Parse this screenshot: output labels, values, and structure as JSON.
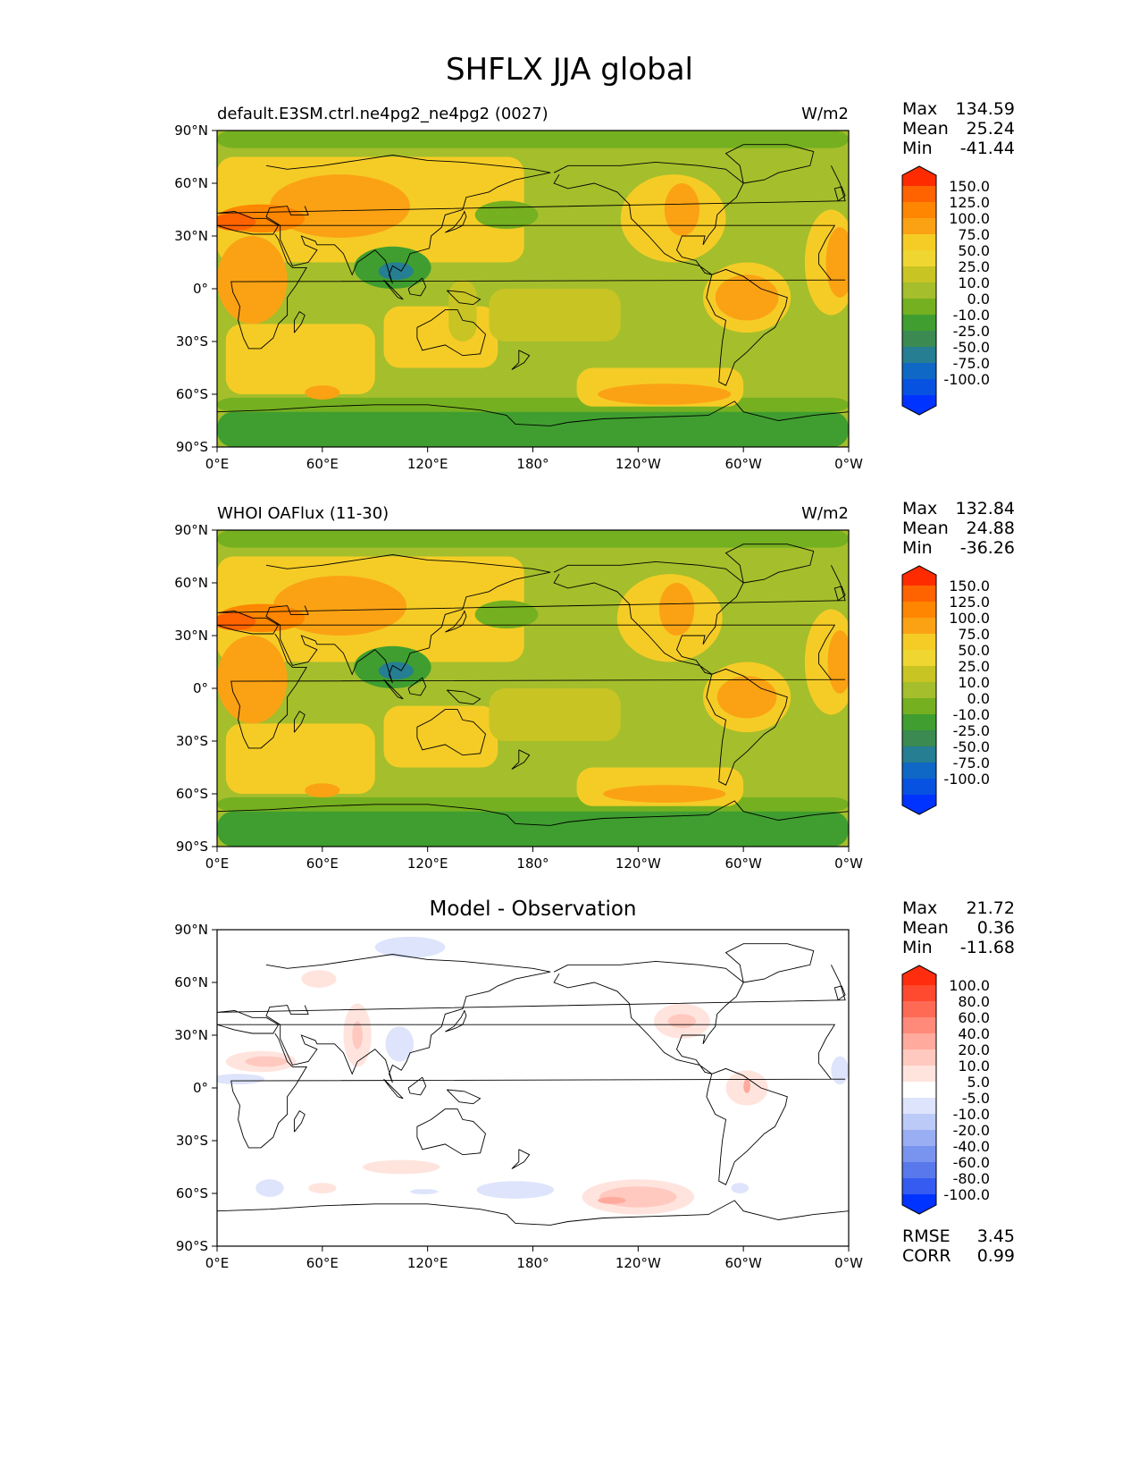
{
  "title": "SHFLX JJA global",
  "panels": [
    {
      "id": "model",
      "left_title": "default.E3SM.ctrl.ne4pg2_ne4pg2 (0027)",
      "units": "W/m2",
      "center_title": "",
      "stats": [
        {
          "label": "Max",
          "value": "134.59"
        },
        {
          "label": "Mean",
          "value": "25.24"
        },
        {
          "label": "Min",
          "value": "-41.44"
        }
      ],
      "colorbar": {
        "labels": [
          "150.0",
          "125.0",
          "100.0",
          "75.0",
          "50.0",
          "25.0",
          "10.0",
          "0.0",
          "-10.0",
          "-25.0",
          "-50.0",
          "-75.0",
          "-100.0"
        ],
        "colors": [
          "#ff2b00",
          "#ff6300",
          "#ff8600",
          "#fba214",
          "#f5cc26",
          "#f0d631",
          "#c8c424",
          "#a5be2c",
          "#75b020",
          "#3f9e2f",
          "#3a8a52",
          "#257e91",
          "#0f68c5",
          "#0752e0",
          "#0033ff"
        ]
      },
      "extra_stats": []
    },
    {
      "id": "obs",
      "left_title": "WHOI OAFlux (11-30)",
      "units": "W/m2",
      "center_title": "",
      "stats": [
        {
          "label": "Max",
          "value": "132.84"
        },
        {
          "label": "Mean",
          "value": "24.88"
        },
        {
          "label": "Min",
          "value": "-36.26"
        }
      ],
      "colorbar": {
        "labels": [
          "150.0",
          "125.0",
          "100.0",
          "75.0",
          "50.0",
          "25.0",
          "10.0",
          "0.0",
          "-10.0",
          "-25.0",
          "-50.0",
          "-75.0",
          "-100.0"
        ],
        "colors": [
          "#ff2b00",
          "#ff6300",
          "#ff8600",
          "#fba214",
          "#f5cc26",
          "#f0d631",
          "#c8c424",
          "#a5be2c",
          "#75b020",
          "#3f9e2f",
          "#3a8a52",
          "#257e91",
          "#0f68c5",
          "#0752e0",
          "#0033ff"
        ]
      },
      "extra_stats": []
    },
    {
      "id": "diff",
      "left_title": "",
      "units": "",
      "center_title": "Model - Observation",
      "stats": [
        {
          "label": "Max",
          "value": "21.72"
        },
        {
          "label": "Mean",
          "value": "0.36"
        },
        {
          "label": "Min",
          "value": "-11.68"
        }
      ],
      "colorbar": {
        "labels": [
          "100.0",
          "80.0",
          "60.0",
          "40.0",
          "20.0",
          "10.0",
          "5.0",
          "-5.0",
          "-10.0",
          "-20.0",
          "-40.0",
          "-60.0",
          "-80.0",
          "-100.0"
        ],
        "colors": [
          "#ff2d0d",
          "#ff4a30",
          "#ff6a55",
          "#ff8a7a",
          "#ffaa9d",
          "#ffc9c0",
          "#ffe4de",
          "#ffffff",
          "#dde4fb",
          "#bccaf7",
          "#9aaef3",
          "#7994ef",
          "#5878eb",
          "#355bf0",
          "#0033ff"
        ]
      },
      "extra_stats": [
        {
          "label": "RMSE",
          "value": "3.45"
        },
        {
          "label": "CORR",
          "value": "0.99"
        }
      ]
    }
  ],
  "chart_data": [
    {
      "type": "heatmap",
      "title": "default.E3SM.ctrl.ne4pg2_ne4pg2 (0027)",
      "units": "W/m2",
      "x_ticks": [
        "0°E",
        "60°E",
        "120°E",
        "180°",
        "120°W",
        "60°W",
        "0°W"
      ],
      "y_ticks": [
        "90°N",
        "60°N",
        "30°N",
        "0°",
        "30°S",
        "60°S",
        "90°S"
      ],
      "xlim": [
        0,
        360
      ],
      "ylim": [
        -90,
        90
      ],
      "levels": [
        -100,
        -75,
        -50,
        -25,
        -10,
        0,
        10,
        25,
        50,
        75,
        100,
        125,
        150
      ],
      "background_color": "#a5be2c",
      "regions": [
        {
          "shape": "rect",
          "x": [
            0,
            360
          ],
          "y": [
            -90,
            -70
          ],
          "color": "#3f9e2f"
        },
        {
          "shape": "rect",
          "x": [
            0,
            360
          ],
          "y": [
            -70,
            -62
          ],
          "color": "#75b020"
        },
        {
          "shape": "rect",
          "x": [
            0,
            360
          ],
          "y": [
            80,
            90
          ],
          "color": "#75b020"
        },
        {
          "shape": "rect",
          "x": [
            5,
            90
          ],
          "y": [
            -60,
            -20
          ],
          "color": "#f5cc26"
        },
        {
          "shape": "rect",
          "x": [
            95,
            160
          ],
          "y": [
            -45,
            -10
          ],
          "color": "#f5cc26"
        },
        {
          "shape": "rect",
          "x": [
            205,
            300
          ],
          "y": [
            -67,
            -45
          ],
          "color": "#f5cc26"
        },
        {
          "shape": "ellipse",
          "cx": 255,
          "cy": -60,
          "rx": 38,
          "ry": 6,
          "color": "#fba214"
        },
        {
          "shape": "ellipse",
          "cx": 60,
          "cy": -59,
          "rx": 10,
          "ry": 4,
          "color": "#fba214"
        },
        {
          "shape": "rect",
          "x": 140,
          "y": [
            -30,
            5
          ],
          "color": "#c8c424"
        },
        {
          "shape": "rect",
          "x": [
            155,
            230
          ],
          "y": [
            -30,
            0
          ],
          "color": "#c8c424"
        },
        {
          "shape": "rect",
          "x": [
            0,
            175
          ],
          "y": [
            15,
            75
          ],
          "color": "#f5cc26"
        },
        {
          "shape": "ellipse",
          "cx": 70,
          "cy": 47,
          "rx": 40,
          "ry": 18,
          "color": "#fba214"
        },
        {
          "shape": "ellipse",
          "cx": 25,
          "cy": 40,
          "rx": 25,
          "ry": 8,
          "color": "#ff8600"
        },
        {
          "shape": "ellipse",
          "cx": 10,
          "cy": 38,
          "rx": 12,
          "ry": 5,
          "color": "#ff6300"
        },
        {
          "shape": "ellipse",
          "cx": 20,
          "cy": 5,
          "rx": 20,
          "ry": 25,
          "color": "#fba214"
        },
        {
          "shape": "ellipse",
          "cx": 100,
          "cy": 12,
          "rx": 22,
          "ry": 12,
          "color": "#3f9e2f"
        },
        {
          "shape": "ellipse",
          "cx": 102,
          "cy": 10,
          "rx": 10,
          "ry": 5,
          "color": "#257e91"
        },
        {
          "shape": "ellipse",
          "cx": 165,
          "cy": 42,
          "rx": 18,
          "ry": 8,
          "color": "#75b020"
        },
        {
          "shape": "ellipse",
          "cx": 260,
          "cy": 40,
          "rx": 30,
          "ry": 25,
          "color": "#f5cc26"
        },
        {
          "shape": "ellipse",
          "cx": 265,
          "cy": 45,
          "rx": 10,
          "ry": 15,
          "color": "#fba214"
        },
        {
          "shape": "ellipse",
          "cx": 302,
          "cy": -5,
          "rx": 25,
          "ry": 20,
          "color": "#f5cc26"
        },
        {
          "shape": "ellipse",
          "cx": 302,
          "cy": -5,
          "rx": 18,
          "ry": 13,
          "color": "#fba214"
        },
        {
          "shape": "ellipse",
          "cx": 350,
          "cy": 15,
          "rx": 15,
          "ry": 30,
          "color": "#f5cc26"
        },
        {
          "shape": "ellipse",
          "cx": 355,
          "cy": 15,
          "rx": 8,
          "ry": 20,
          "color": "#fba214"
        }
      ]
    },
    {
      "type": "heatmap",
      "title": "WHOI OAFlux (11-30)",
      "units": "W/m2",
      "x_ticks": [
        "0°E",
        "60°E",
        "120°E",
        "180°",
        "120°W",
        "60°W",
        "0°W"
      ],
      "y_ticks": [
        "90°N",
        "60°N",
        "30°N",
        "0°",
        "30°S",
        "60°S",
        "90°S"
      ],
      "xlim": [
        0,
        360
      ],
      "ylim": [
        -90,
        90
      ],
      "levels": [
        -100,
        -75,
        -50,
        -25,
        -10,
        0,
        10,
        25,
        50,
        75,
        100,
        125,
        150
      ],
      "background_color": "#a5be2c",
      "regions": [
        {
          "shape": "rect",
          "x": [
            0,
            360
          ],
          "y": [
            -90,
            -70
          ],
          "color": "#3f9e2f"
        },
        {
          "shape": "rect",
          "x": [
            0,
            360
          ],
          "y": [
            -70,
            -62
          ],
          "color": "#75b020"
        },
        {
          "shape": "rect",
          "x": [
            0,
            360
          ],
          "y": [
            80,
            90
          ],
          "color": "#75b020"
        },
        {
          "shape": "rect",
          "x": [
            5,
            90
          ],
          "y": [
            -60,
            -20
          ],
          "color": "#f5cc26"
        },
        {
          "shape": "rect",
          "x": [
            95,
            160
          ],
          "y": [
            -45,
            -10
          ],
          "color": "#f5cc26"
        },
        {
          "shape": "rect",
          "x": [
            205,
            300
          ],
          "y": [
            -67,
            -45
          ],
          "color": "#f5cc26"
        },
        {
          "shape": "ellipse",
          "cx": 255,
          "cy": -60,
          "rx": 35,
          "ry": 5,
          "color": "#fba214"
        },
        {
          "shape": "ellipse",
          "cx": 60,
          "cy": -58,
          "rx": 10,
          "ry": 4,
          "color": "#fba214"
        },
        {
          "shape": "rect",
          "x": [
            155,
            230
          ],
          "y": [
            -30,
            0
          ],
          "color": "#c8c424"
        },
        {
          "shape": "rect",
          "x": [
            0,
            175
          ],
          "y": [
            15,
            75
          ],
          "color": "#f5cc26"
        },
        {
          "shape": "ellipse",
          "cx": 70,
          "cy": 47,
          "rx": 38,
          "ry": 17,
          "color": "#fba214"
        },
        {
          "shape": "ellipse",
          "cx": 25,
          "cy": 40,
          "rx": 25,
          "ry": 8,
          "color": "#ff8600"
        },
        {
          "shape": "ellipse",
          "cx": 10,
          "cy": 38,
          "rx": 12,
          "ry": 5,
          "color": "#ff6300"
        },
        {
          "shape": "ellipse",
          "cx": 20,
          "cy": 5,
          "rx": 20,
          "ry": 25,
          "color": "#fba214"
        },
        {
          "shape": "ellipse",
          "cx": 100,
          "cy": 12,
          "rx": 22,
          "ry": 12,
          "color": "#3f9e2f"
        },
        {
          "shape": "ellipse",
          "cx": 102,
          "cy": 10,
          "rx": 10,
          "ry": 5,
          "color": "#257e91"
        },
        {
          "shape": "ellipse",
          "cx": 165,
          "cy": 42,
          "rx": 18,
          "ry": 8,
          "color": "#75b020"
        },
        {
          "shape": "ellipse",
          "cx": 258,
          "cy": 40,
          "rx": 30,
          "ry": 25,
          "color": "#f5cc26"
        },
        {
          "shape": "ellipse",
          "cx": 262,
          "cy": 45,
          "rx": 10,
          "ry": 15,
          "color": "#fba214"
        },
        {
          "shape": "ellipse",
          "cx": 302,
          "cy": -5,
          "rx": 25,
          "ry": 20,
          "color": "#f5cc26"
        },
        {
          "shape": "ellipse",
          "cx": 302,
          "cy": -5,
          "rx": 17,
          "ry": 12,
          "color": "#fba214"
        },
        {
          "shape": "ellipse",
          "cx": 350,
          "cy": 15,
          "rx": 15,
          "ry": 30,
          "color": "#f5cc26"
        },
        {
          "shape": "ellipse",
          "cx": 355,
          "cy": 15,
          "rx": 7,
          "ry": 18,
          "color": "#fba214"
        }
      ]
    },
    {
      "type": "heatmap",
      "title": "Model - Observation",
      "x_ticks": [
        "0°E",
        "60°E",
        "120°E",
        "180°",
        "120°W",
        "60°W",
        "0°W"
      ],
      "y_ticks": [
        "90°N",
        "60°N",
        "30°N",
        "0°",
        "30°S",
        "60°S",
        "90°S"
      ],
      "xlim": [
        0,
        360
      ],
      "ylim": [
        -90,
        90
      ],
      "levels": [
        -100,
        -80,
        -60,
        -40,
        -20,
        -10,
        -5,
        5,
        10,
        20,
        40,
        60,
        80,
        100
      ],
      "background_color": "#ffffff",
      "regions": [
        {
          "shape": "ellipse",
          "cx": 110,
          "cy": 80,
          "rx": 20,
          "ry": 6,
          "color": "#dde4fb"
        },
        {
          "shape": "ellipse",
          "cx": 58,
          "cy": 62,
          "rx": 10,
          "ry": 5,
          "color": "#ffe4de"
        },
        {
          "shape": "ellipse",
          "cx": 80,
          "cy": 30,
          "rx": 8,
          "ry": 18,
          "color": "#ffe4de"
        },
        {
          "shape": "ellipse",
          "cx": 80,
          "cy": 30,
          "rx": 3,
          "ry": 8,
          "color": "#ffc9c0"
        },
        {
          "shape": "ellipse",
          "cx": 104,
          "cy": 25,
          "rx": 8,
          "ry": 10,
          "color": "#dde4fb"
        },
        {
          "shape": "ellipse",
          "cx": 25,
          "cy": 15,
          "rx": 20,
          "ry": 6,
          "color": "#ffe4de"
        },
        {
          "shape": "ellipse",
          "cx": 28,
          "cy": 15,
          "rx": 12,
          "ry": 3,
          "color": "#ffc9c0"
        },
        {
          "shape": "ellipse",
          "cx": 12,
          "cy": 5,
          "rx": 15,
          "ry": 3,
          "color": "#dde4fb"
        },
        {
          "shape": "ellipse",
          "cx": 265,
          "cy": 38,
          "rx": 16,
          "ry": 10,
          "color": "#ffe4de"
        },
        {
          "shape": "ellipse",
          "cx": 265,
          "cy": 38,
          "rx": 8,
          "ry": 4,
          "color": "#ffc9c0"
        },
        {
          "shape": "ellipse",
          "cx": 302,
          "cy": 0,
          "rx": 12,
          "ry": 10,
          "color": "#ffe4de"
        },
        {
          "shape": "ellipse",
          "cx": 302,
          "cy": 1,
          "rx": 2,
          "ry": 4,
          "color": "#ffaa9d"
        },
        {
          "shape": "ellipse",
          "cx": 355,
          "cy": 10,
          "rx": 5,
          "ry": 8,
          "color": "#dde4fb"
        },
        {
          "shape": "ellipse",
          "cx": 240,
          "cy": -62,
          "rx": 32,
          "ry": 10,
          "color": "#ffe4de"
        },
        {
          "shape": "ellipse",
          "cx": 240,
          "cy": -62,
          "rx": 22,
          "ry": 6,
          "color": "#ffc9c0"
        },
        {
          "shape": "ellipse",
          "cx": 225,
          "cy": -64,
          "rx": 8,
          "ry": 2,
          "color": "#ffaa9d"
        },
        {
          "shape": "ellipse",
          "cx": 170,
          "cy": -58,
          "rx": 22,
          "ry": 5,
          "color": "#dde4fb"
        },
        {
          "shape": "ellipse",
          "cx": 30,
          "cy": -57,
          "rx": 8,
          "ry": 5,
          "color": "#dde4fb"
        },
        {
          "shape": "ellipse",
          "cx": 60,
          "cy": -57,
          "rx": 8,
          "ry": 3,
          "color": "#ffe4de"
        },
        {
          "shape": "ellipse",
          "cx": 105,
          "cy": -45,
          "rx": 22,
          "ry": 4,
          "color": "#ffe4de"
        },
        {
          "shape": "ellipse",
          "cx": 298,
          "cy": -57,
          "rx": 5,
          "ry": 3,
          "color": "#dde4fb"
        },
        {
          "shape": "ellipse",
          "cx": 118,
          "cy": -59,
          "rx": 8,
          "ry": 1.5,
          "color": "#dde4fb"
        }
      ]
    }
  ]
}
